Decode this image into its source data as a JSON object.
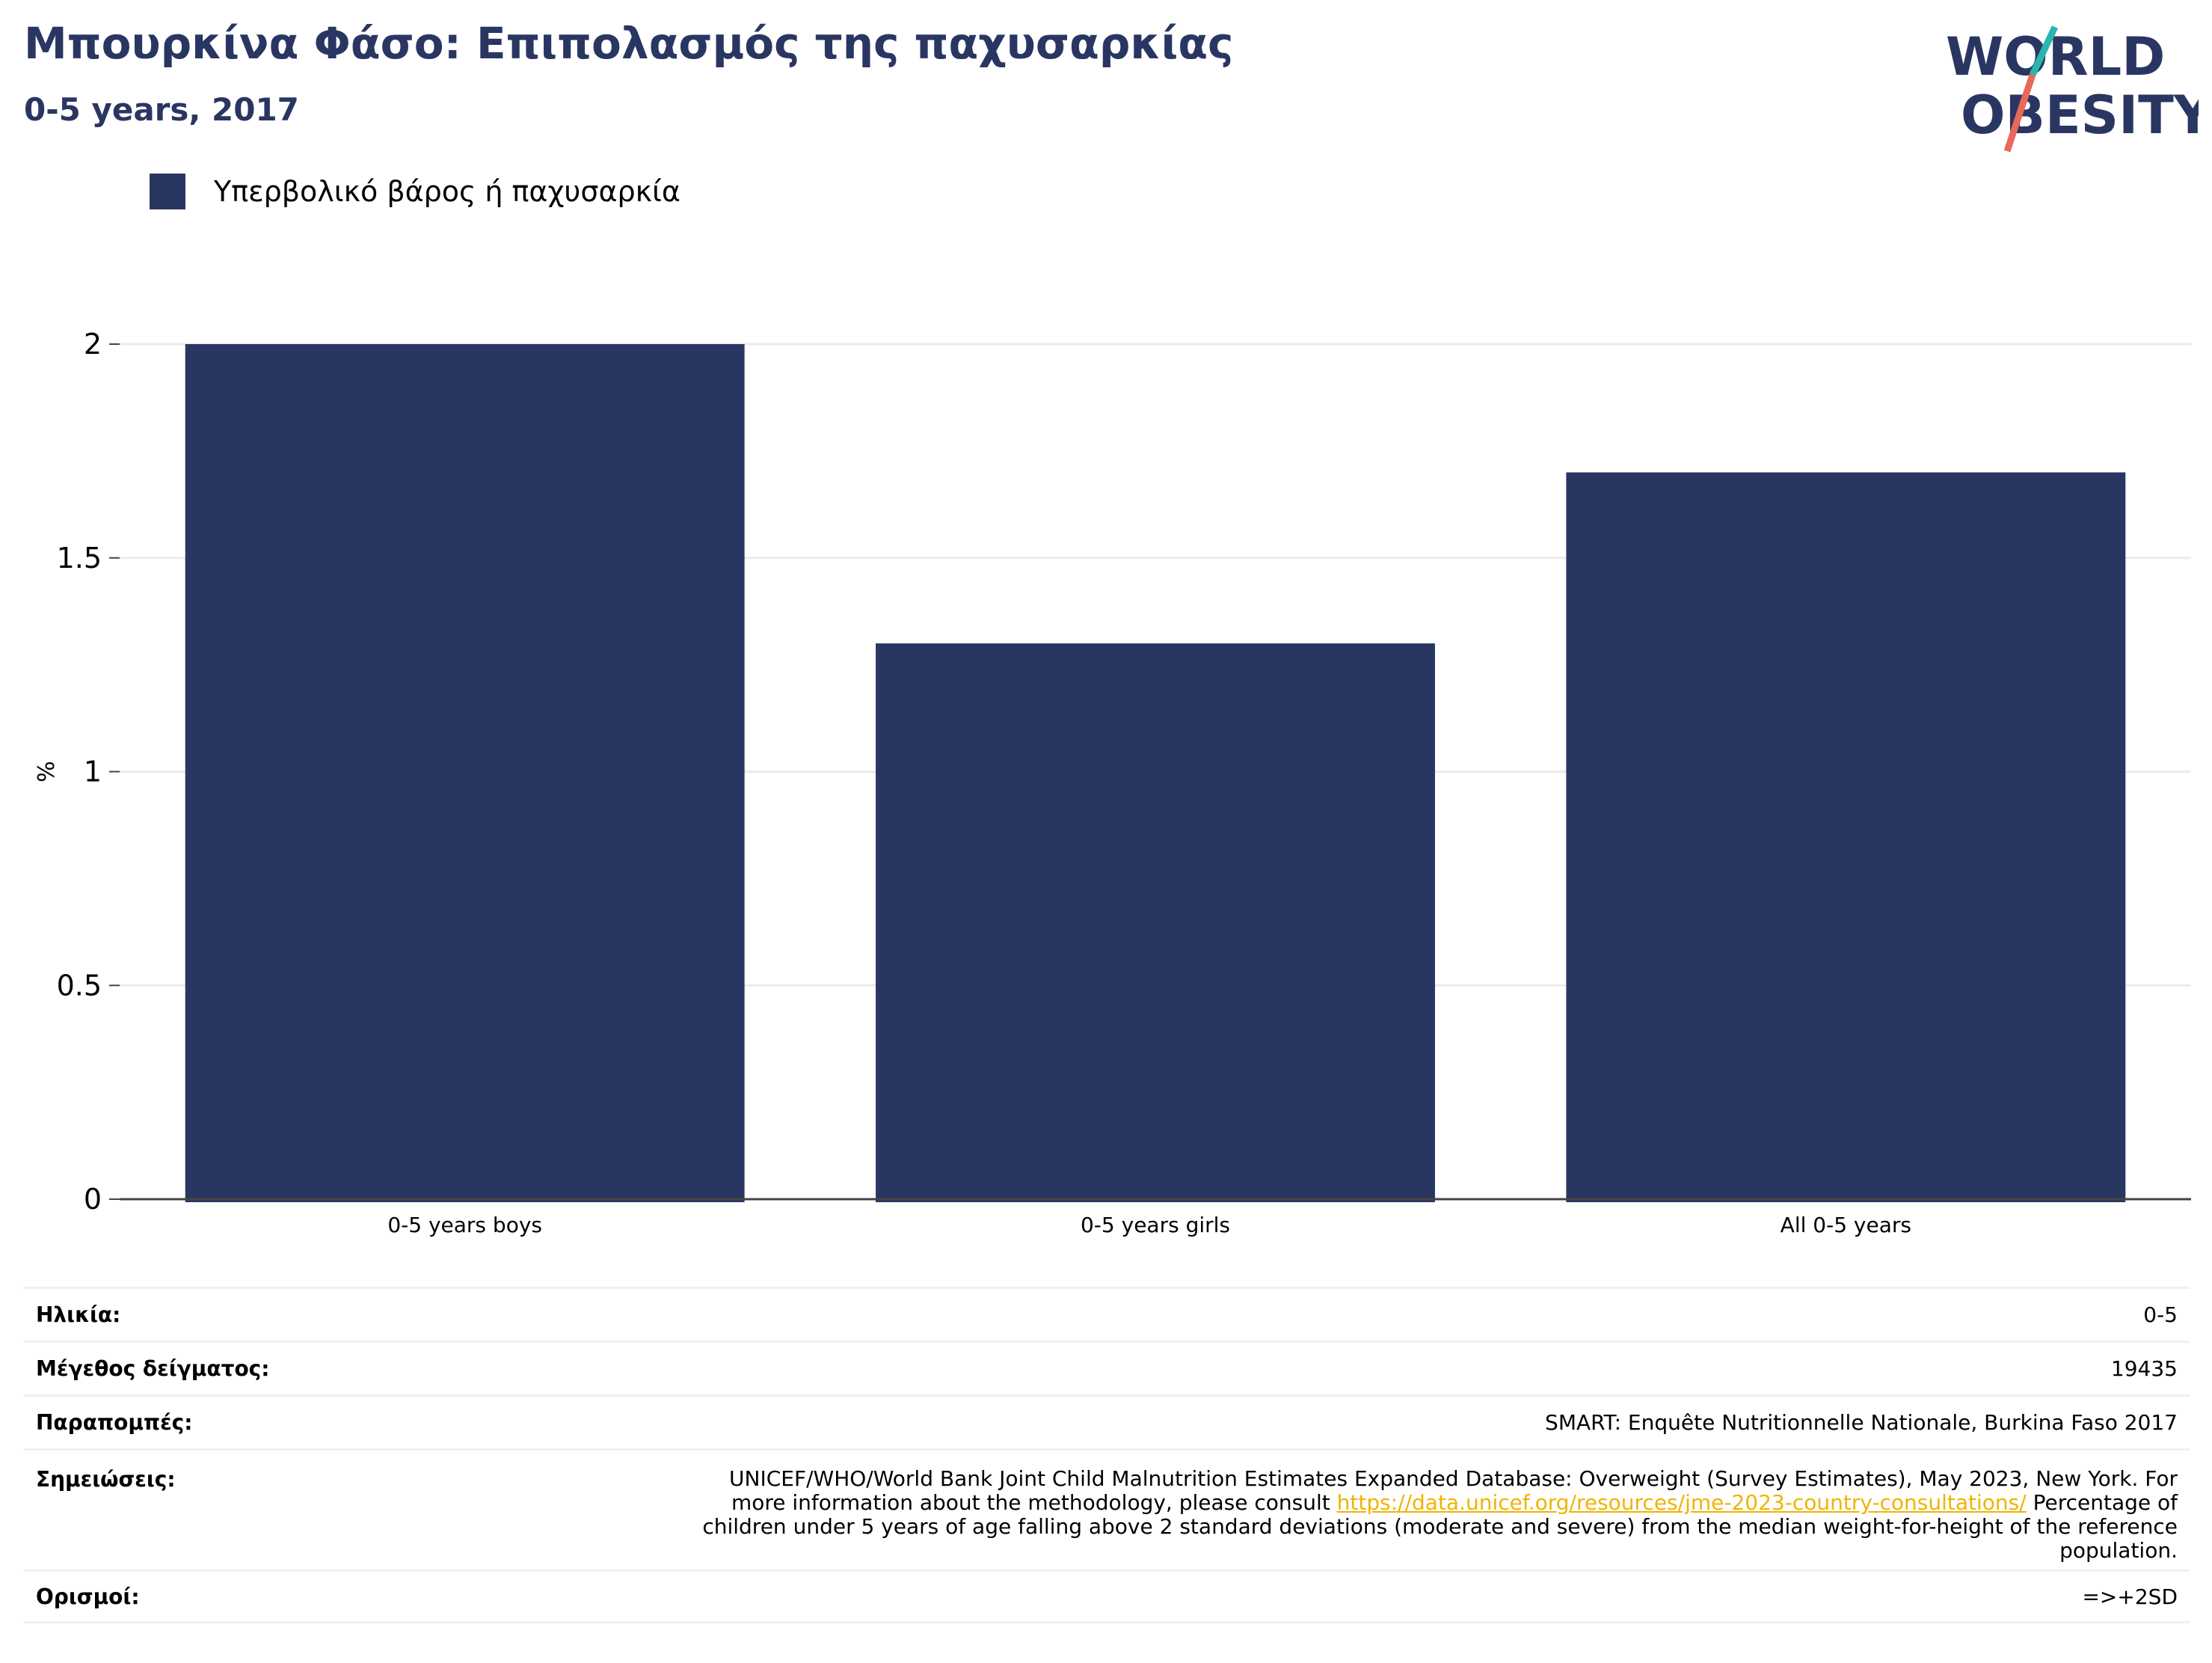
{
  "header": {
    "title": "Μπουρκίνα Φάσο: Επιπολασμός της παχυσαρκίας",
    "subtitle": "0-5 years, 2017"
  },
  "logo": {
    "line1": "WORLD",
    "line2": "OBESITY",
    "colors": {
      "text": "#2a3662",
      "slash_top": "#2bb5b0",
      "slash_bottom": "#e8685a"
    }
  },
  "legend": {
    "label": "Υπερβολικό βάρος ή παχυσαρκία",
    "color": "#2a3662"
  },
  "chart_data": {
    "type": "bar",
    "categories": [
      "0-5 years boys",
      "0-5 years girls",
      "All 0-5 years"
    ],
    "series": [
      {
        "name": "Υπερβολικό βάρος ή παχυσαρκία",
        "values": [
          2.0,
          1.3,
          1.7
        ],
        "color": "#2a3662"
      }
    ],
    "title": "",
    "xlabel": "",
    "ylabel": "%",
    "ylim": [
      0,
      2
    ],
    "yticks": [
      "0",
      "0.5",
      "1",
      "1.5",
      "2"
    ],
    "grid": true,
    "legend_position": "top-left"
  },
  "info": {
    "age_label": "Ηλικία:",
    "age_value": "0-5",
    "sample_label": "Μέγεθος δείγματος:",
    "sample_value": "19435",
    "refs_label": "Παραπομπές:",
    "refs_value": "SMART: Enquête Nutritionnelle Nationale, Burkina Faso 2017",
    "notes_label": "Σημειώσεις:",
    "notes_line1": "UNICEF/WHO/World Bank Joint Child Malnutrition Estimates Expanded Database: Overweight (Survey Estimates), May 2023, New York. For",
    "notes_line2_pre": "more information about the methodology, please consult ",
    "notes_link": "https://data.unicef.org/resources/jme-2023-country-consultations/",
    "notes_line2_post": " Percentage of",
    "notes_line3": "children under 5 years of age falling above 2 standard deviations (moderate and severe) from the median weight-for-height of the reference",
    "notes_line4": "population.",
    "defs_label": "Ορισμοί:",
    "defs_value": "=>+2SD"
  }
}
